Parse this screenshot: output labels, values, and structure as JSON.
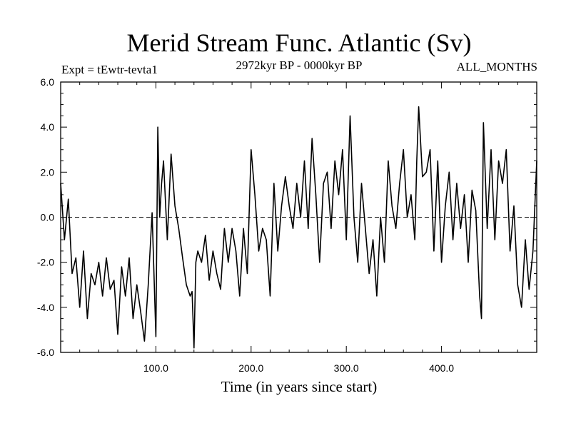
{
  "chart_data": {
    "type": "line",
    "title": "Merid Stream Func. Atlantic (Sv)",
    "subtitle_left": "Expt = tEwtr-tevta1",
    "subtitle_center": "2972kyr BP - 0000kyr BP",
    "subtitle_right": "ALL_MONTHS",
    "xlabel": "Time (in years since start)",
    "ylabel": "",
    "xlim": [
      0,
      500
    ],
    "ylim": [
      -6,
      6
    ],
    "x_ticks": [
      100,
      200,
      300,
      400
    ],
    "x_tick_labels": [
      "100.0",
      "200.0",
      "300.0",
      "400.0"
    ],
    "y_ticks": [
      -6,
      -4,
      -2,
      0,
      2,
      4,
      6
    ],
    "y_tick_labels": [
      "-6.0",
      "-4.0",
      "-2.0",
      "0.0",
      "2.0",
      "4.0",
      "6.0"
    ],
    "zero_line": true,
    "series": [
      {
        "name": "Merid Stream Func.",
        "color": "#000000",
        "x": [
          0,
          4,
          8,
          12,
          16,
          20,
          24,
          28,
          32,
          36,
          40,
          44,
          48,
          52,
          56,
          60,
          64,
          68,
          72,
          76,
          80,
          84,
          88,
          92,
          96,
          100,
          102,
          104,
          106,
          108,
          112,
          116,
          120,
          124,
          128,
          132,
          136,
          138,
          140,
          142,
          144,
          148,
          152,
          156,
          160,
          164,
          168,
          172,
          176,
          180,
          184,
          188,
          192,
          196,
          200,
          204,
          208,
          212,
          216,
          220,
          224,
          228,
          232,
          236,
          240,
          244,
          248,
          252,
          256,
          260,
          264,
          268,
          272,
          276,
          280,
          284,
          288,
          292,
          296,
          300,
          304,
          308,
          312,
          316,
          320,
          324,
          328,
          332,
          336,
          340,
          344,
          348,
          352,
          356,
          360,
          364,
          368,
          372,
          374,
          376,
          380,
          384,
          388,
          392,
          396,
          400,
          404,
          408,
          412,
          416,
          420,
          424,
          428,
          432,
          436,
          440,
          442,
          444,
          448,
          452,
          456,
          460,
          464,
          468,
          472,
          476,
          480,
          484,
          488,
          492,
          496,
          500
        ],
        "values": [
          1.5,
          -1.0,
          0.8,
          -2.5,
          -1.8,
          -4.0,
          -1.5,
          -4.5,
          -2.5,
          -3.0,
          -2.0,
          -3.5,
          -1.8,
          -3.2,
          -2.8,
          -5.2,
          -2.2,
          -3.5,
          -1.8,
          -4.5,
          -3.0,
          -4.2,
          -5.5,
          -3.0,
          0.2,
          -5.3,
          4.0,
          0.0,
          1.5,
          2.5,
          -1.0,
          2.8,
          0.5,
          -0.5,
          -1.8,
          -3.0,
          -3.5,
          -3.3,
          -5.8,
          -2.0,
          -1.5,
          -2.0,
          -0.8,
          -2.8,
          -1.5,
          -2.5,
          -3.2,
          -0.5,
          -2.0,
          -0.5,
          -1.5,
          -3.5,
          -0.5,
          -2.5,
          3.0,
          1.0,
          -1.5,
          -0.5,
          -1.0,
          -3.5,
          1.5,
          -1.5,
          0.5,
          1.8,
          0.5,
          -0.5,
          1.5,
          0.0,
          2.5,
          -0.5,
          3.5,
          1.0,
          -2.0,
          1.5,
          2.0,
          -0.5,
          2.5,
          1.0,
          3.0,
          -1.0,
          4.5,
          0.0,
          -2.0,
          1.5,
          -0.5,
          -2.5,
          -1.0,
          -3.5,
          0.0,
          -2.0,
          2.5,
          0.5,
          -0.5,
          1.5,
          3.0,
          0.0,
          1.0,
          -1.0,
          2.5,
          4.9,
          1.8,
          2.0,
          3.0,
          -1.5,
          2.5,
          -2.0,
          0.5,
          2.0,
          -1.0,
          1.5,
          -0.5,
          1.0,
          -2.0,
          1.2,
          0.3,
          -3.5,
          -4.5,
          4.2,
          -0.5,
          3.0,
          -1.0,
          2.5,
          1.5,
          3.0,
          -1.5,
          0.5,
          -3.0,
          -4.0,
          -1.0,
          -3.2,
          -1.5,
          2.5
        ]
      }
    ]
  }
}
